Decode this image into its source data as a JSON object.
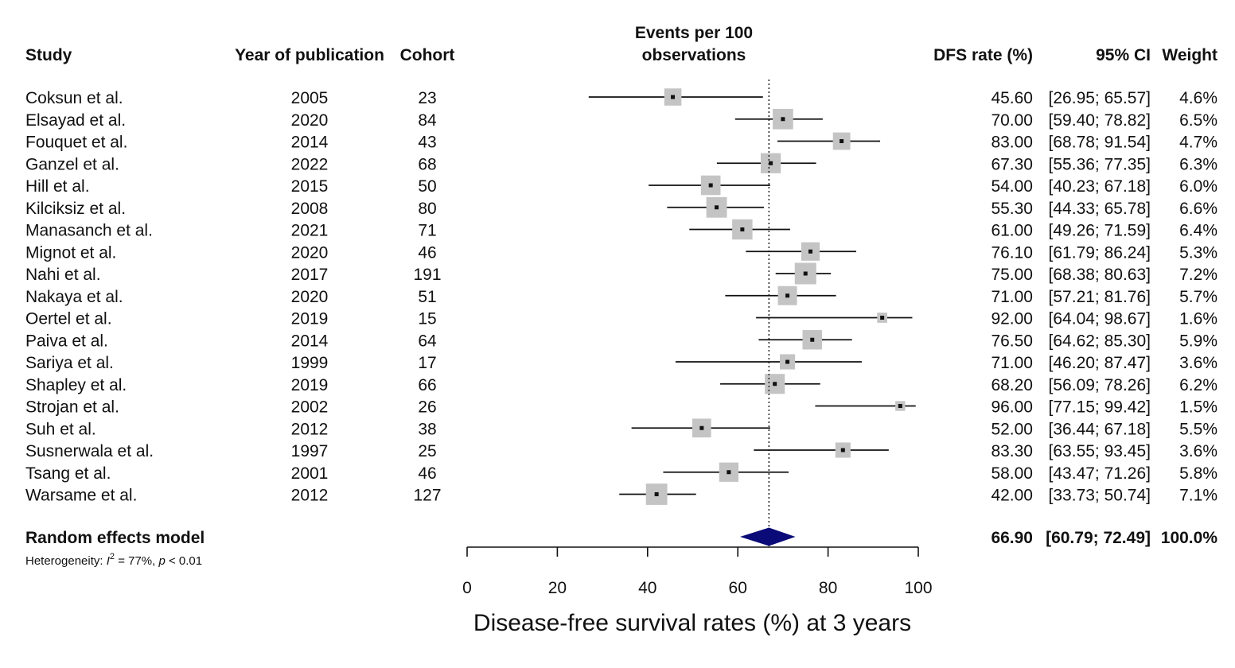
{
  "headers": {
    "study": "Study",
    "year": "Year of publication",
    "cohort": "Cohort",
    "events_line1": "Events per 100",
    "events_line2": "observations",
    "rate": "DFS rate (%)",
    "ci": "95% CI",
    "weight": "Weight"
  },
  "summary": {
    "label": "Random effects model",
    "heterogeneity_prefix": "Heterogeneity: ",
    "heterogeneity_i": "I",
    "heterogeneity_sup": "2",
    "heterogeneity_mid": " = 77%, ",
    "heterogeneity_p": "p",
    "heterogeneity_suffix": " < 0.01",
    "rate": "66.90",
    "ci": "[60.79; 72.49]",
    "weight": "100.0%",
    "diamond_color": "#0a0a78"
  },
  "chart_data": {
    "type": "forest",
    "xlabel": "Disease-free survival rates (%) at 3 years",
    "xlim": [
      0,
      100
    ],
    "xticks": [
      "0",
      "20",
      "40",
      "60",
      "80",
      "100"
    ],
    "reference_line": 66.9,
    "pooled": {
      "estimate": 66.9,
      "lower": 60.79,
      "upper": 72.49
    },
    "studies": [
      {
        "study": "Coksun et al.",
        "year": "2005",
        "cohort": "23",
        "rate": 45.6,
        "lower": 26.95,
        "upper": 65.57,
        "rate_text": "45.60",
        "ci_text": "[26.95; 65.57]",
        "weight": 4.6,
        "weight_text": "4.6%"
      },
      {
        "study": "Elsayad et al.",
        "year": "2020",
        "cohort": "84",
        "rate": 70.0,
        "lower": 59.4,
        "upper": 78.82,
        "rate_text": "70.00",
        "ci_text": "[59.40; 78.82]",
        "weight": 6.5,
        "weight_text": "6.5%"
      },
      {
        "study": "Fouquet et al.",
        "year": "2014",
        "cohort": "43",
        "rate": 83.0,
        "lower": 68.78,
        "upper": 91.54,
        "rate_text": "83.00",
        "ci_text": "[68.78; 91.54]",
        "weight": 4.7,
        "weight_text": "4.7%"
      },
      {
        "study": "Ganzel et al.",
        "year": "2022",
        "cohort": "68",
        "rate": 67.3,
        "lower": 55.36,
        "upper": 77.35,
        "rate_text": "67.30",
        "ci_text": "[55.36; 77.35]",
        "weight": 6.3,
        "weight_text": "6.3%"
      },
      {
        "study": "Hill et al.",
        "year": "2015",
        "cohort": "50",
        "rate": 54.0,
        "lower": 40.23,
        "upper": 67.18,
        "rate_text": "54.00",
        "ci_text": "[40.23; 67.18]",
        "weight": 6.0,
        "weight_text": "6.0%"
      },
      {
        "study": "Kilciksiz et al.",
        "year": "2008",
        "cohort": "80",
        "rate": 55.3,
        "lower": 44.33,
        "upper": 65.78,
        "rate_text": "55.30",
        "ci_text": "[44.33; 65.78]",
        "weight": 6.6,
        "weight_text": "6.6%"
      },
      {
        "study": "Manasanch et al.",
        "year": "2021",
        "cohort": "71",
        "rate": 61.0,
        "lower": 49.26,
        "upper": 71.59,
        "rate_text": "61.00",
        "ci_text": "[49.26; 71.59]",
        "weight": 6.4,
        "weight_text": "6.4%"
      },
      {
        "study": "Mignot et al.",
        "year": "2020",
        "cohort": "46",
        "rate": 76.1,
        "lower": 61.79,
        "upper": 86.24,
        "rate_text": "76.10",
        "ci_text": "[61.79; 86.24]",
        "weight": 5.3,
        "weight_text": "5.3%"
      },
      {
        "study": "Nahi et al.",
        "year": "2017",
        "cohort": "191",
        "rate": 75.0,
        "lower": 68.38,
        "upper": 80.63,
        "rate_text": "75.00",
        "ci_text": "[68.38; 80.63]",
        "weight": 7.2,
        "weight_text": "7.2%"
      },
      {
        "study": "Nakaya et al.",
        "year": "2020",
        "cohort": "51",
        "rate": 71.0,
        "lower": 57.21,
        "upper": 81.76,
        "rate_text": "71.00",
        "ci_text": "[57.21; 81.76]",
        "weight": 5.7,
        "weight_text": "5.7%"
      },
      {
        "study": "Oertel et al.",
        "year": "2019",
        "cohort": "15",
        "rate": 92.0,
        "lower": 64.04,
        "upper": 98.67,
        "rate_text": "92.00",
        "ci_text": "[64.04; 98.67]",
        "weight": 1.6,
        "weight_text": "1.6%"
      },
      {
        "study": "Paiva et al.",
        "year": "2014",
        "cohort": "64",
        "rate": 76.5,
        "lower": 64.62,
        "upper": 85.3,
        "rate_text": "76.50",
        "ci_text": "[64.62; 85.30]",
        "weight": 5.9,
        "weight_text": "5.9%"
      },
      {
        "study": "Sariya et al.",
        "year": "1999",
        "cohort": "17",
        "rate": 71.0,
        "lower": 46.2,
        "upper": 87.47,
        "rate_text": "71.00",
        "ci_text": "[46.20; 87.47]",
        "weight": 3.6,
        "weight_text": "3.6%"
      },
      {
        "study": "Shapley et al.",
        "year": "2019",
        "cohort": "66",
        "rate": 68.2,
        "lower": 56.09,
        "upper": 78.26,
        "rate_text": "68.20",
        "ci_text": "[56.09; 78.26]",
        "weight": 6.2,
        "weight_text": "6.2%"
      },
      {
        "study": "Strojan et al.",
        "year": "2002",
        "cohort": "26",
        "rate": 96.0,
        "lower": 77.15,
        "upper": 99.42,
        "rate_text": "96.00",
        "ci_text": "[77.15; 99.42]",
        "weight": 1.5,
        "weight_text": "1.5%"
      },
      {
        "study": "Suh et al.",
        "year": "2012",
        "cohort": "38",
        "rate": 52.0,
        "lower": 36.44,
        "upper": 67.18,
        "rate_text": "52.00",
        "ci_text": "[36.44; 67.18]",
        "weight": 5.5,
        "weight_text": "5.5%"
      },
      {
        "study": "Susnerwala et al.",
        "year": "1997",
        "cohort": "25",
        "rate": 83.3,
        "lower": 63.55,
        "upper": 93.45,
        "rate_text": "83.30",
        "ci_text": "[63.55; 93.45]",
        "weight": 3.6,
        "weight_text": "3.6%"
      },
      {
        "study": "Tsang et al.",
        "year": "2001",
        "cohort": "46",
        "rate": 58.0,
        "lower": 43.47,
        "upper": 71.26,
        "rate_text": "58.00",
        "ci_text": "[43.47; 71.26]",
        "weight": 5.8,
        "weight_text": "5.8%"
      },
      {
        "study": "Warsame et al.",
        "year": "2012",
        "cohort": "127",
        "rate": 42.0,
        "lower": 33.73,
        "upper": 50.74,
        "rate_text": "42.00",
        "ci_text": "[33.73; 50.74]",
        "weight": 7.1,
        "weight_text": "7.1%"
      }
    ]
  }
}
